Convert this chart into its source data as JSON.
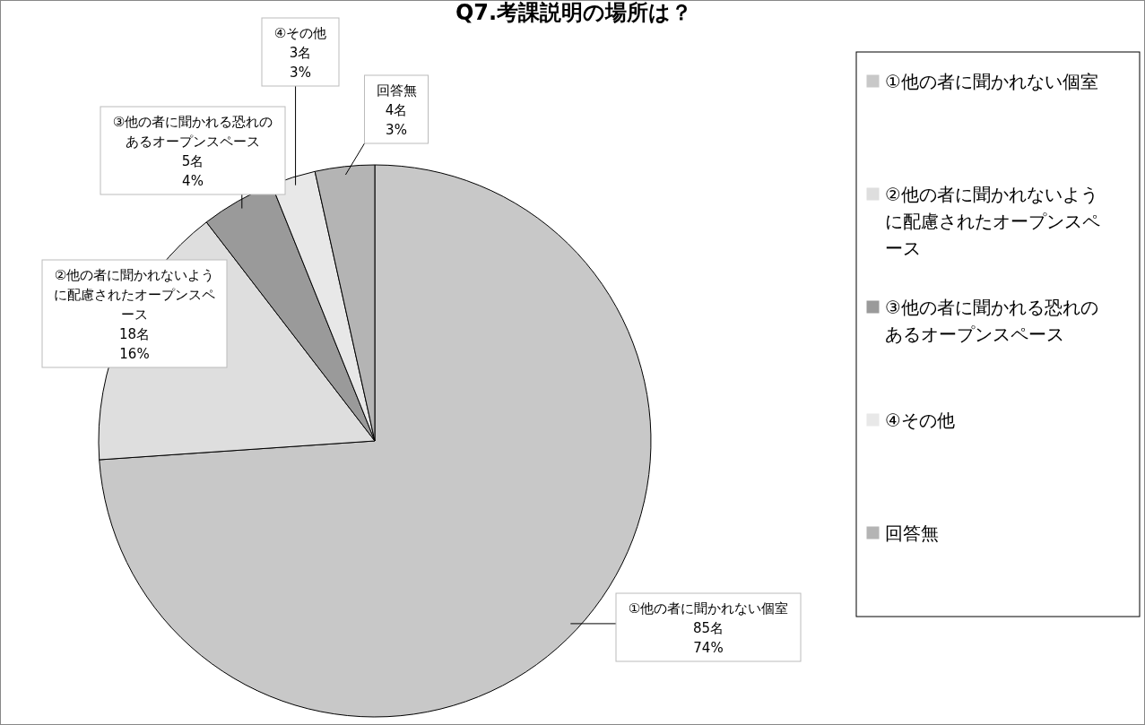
{
  "chart_data": {
    "type": "pie",
    "title": "Q7.考課説明の場所は？",
    "categories": [
      "①他の者に聞かれない個室",
      "②他の者に聞かれないように配慮されたオープンスペース",
      "③他の者に聞かれる恐れのあるオープンスペース",
      "④その他",
      "回答無"
    ],
    "values": [
      85,
      18,
      5,
      3,
      4
    ],
    "value_labels": [
      "85名\n74%",
      "18名\n16%",
      "5名\n4%",
      "3名\n3%",
      "4名\n3%"
    ],
    "colors": [
      "#c8c8c8",
      "#dedede",
      "#9a9a9a",
      "#e8e8e8",
      "#b4b4b4"
    ],
    "legend": "right"
  }
}
